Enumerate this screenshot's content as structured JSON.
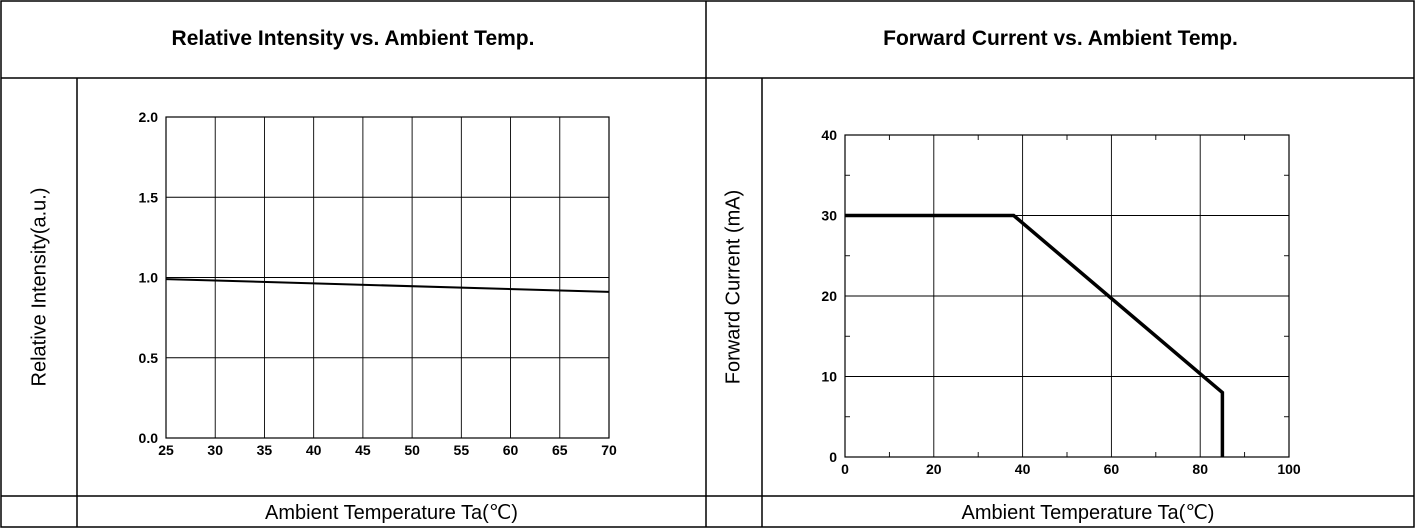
{
  "chart_data": [
    {
      "type": "line",
      "title": "Relative Intensity vs. Ambient Temp.",
      "xlabel": "Ambient Temperature Ta(℃)",
      "ylabel": "Relative Intensity(a.u.)",
      "xlim": [
        25,
        70
      ],
      "ylim": [
        0.0,
        2.0
      ],
      "xticks": [
        "25",
        "30",
        "35",
        "40",
        "45",
        "50",
        "55",
        "60",
        "65",
        "70"
      ],
      "yticks": [
        "0.0",
        "0.5",
        "1.0",
        "1.5",
        "2.0"
      ],
      "grid": true,
      "series": [
        {
          "x": [
            25,
            70
          ],
          "y": [
            0.99,
            0.91
          ]
        }
      ]
    },
    {
      "type": "line",
      "title": "Forward Current vs. Ambient Temp.",
      "xlabel": "Ambient Temperature Ta(℃)",
      "ylabel": "Forward Current (mA)",
      "xlim": [
        0,
        100
      ],
      "ylim": [
        0,
        40
      ],
      "xticks": [
        "0",
        "20",
        "40",
        "60",
        "80",
        "100"
      ],
      "yticks": [
        "0",
        "10",
        "20",
        "30",
        "40"
      ],
      "grid": true,
      "series": [
        {
          "x": [
            0,
            38,
            85,
            85
          ],
          "y": [
            30,
            30,
            8,
            0
          ]
        }
      ]
    }
  ]
}
